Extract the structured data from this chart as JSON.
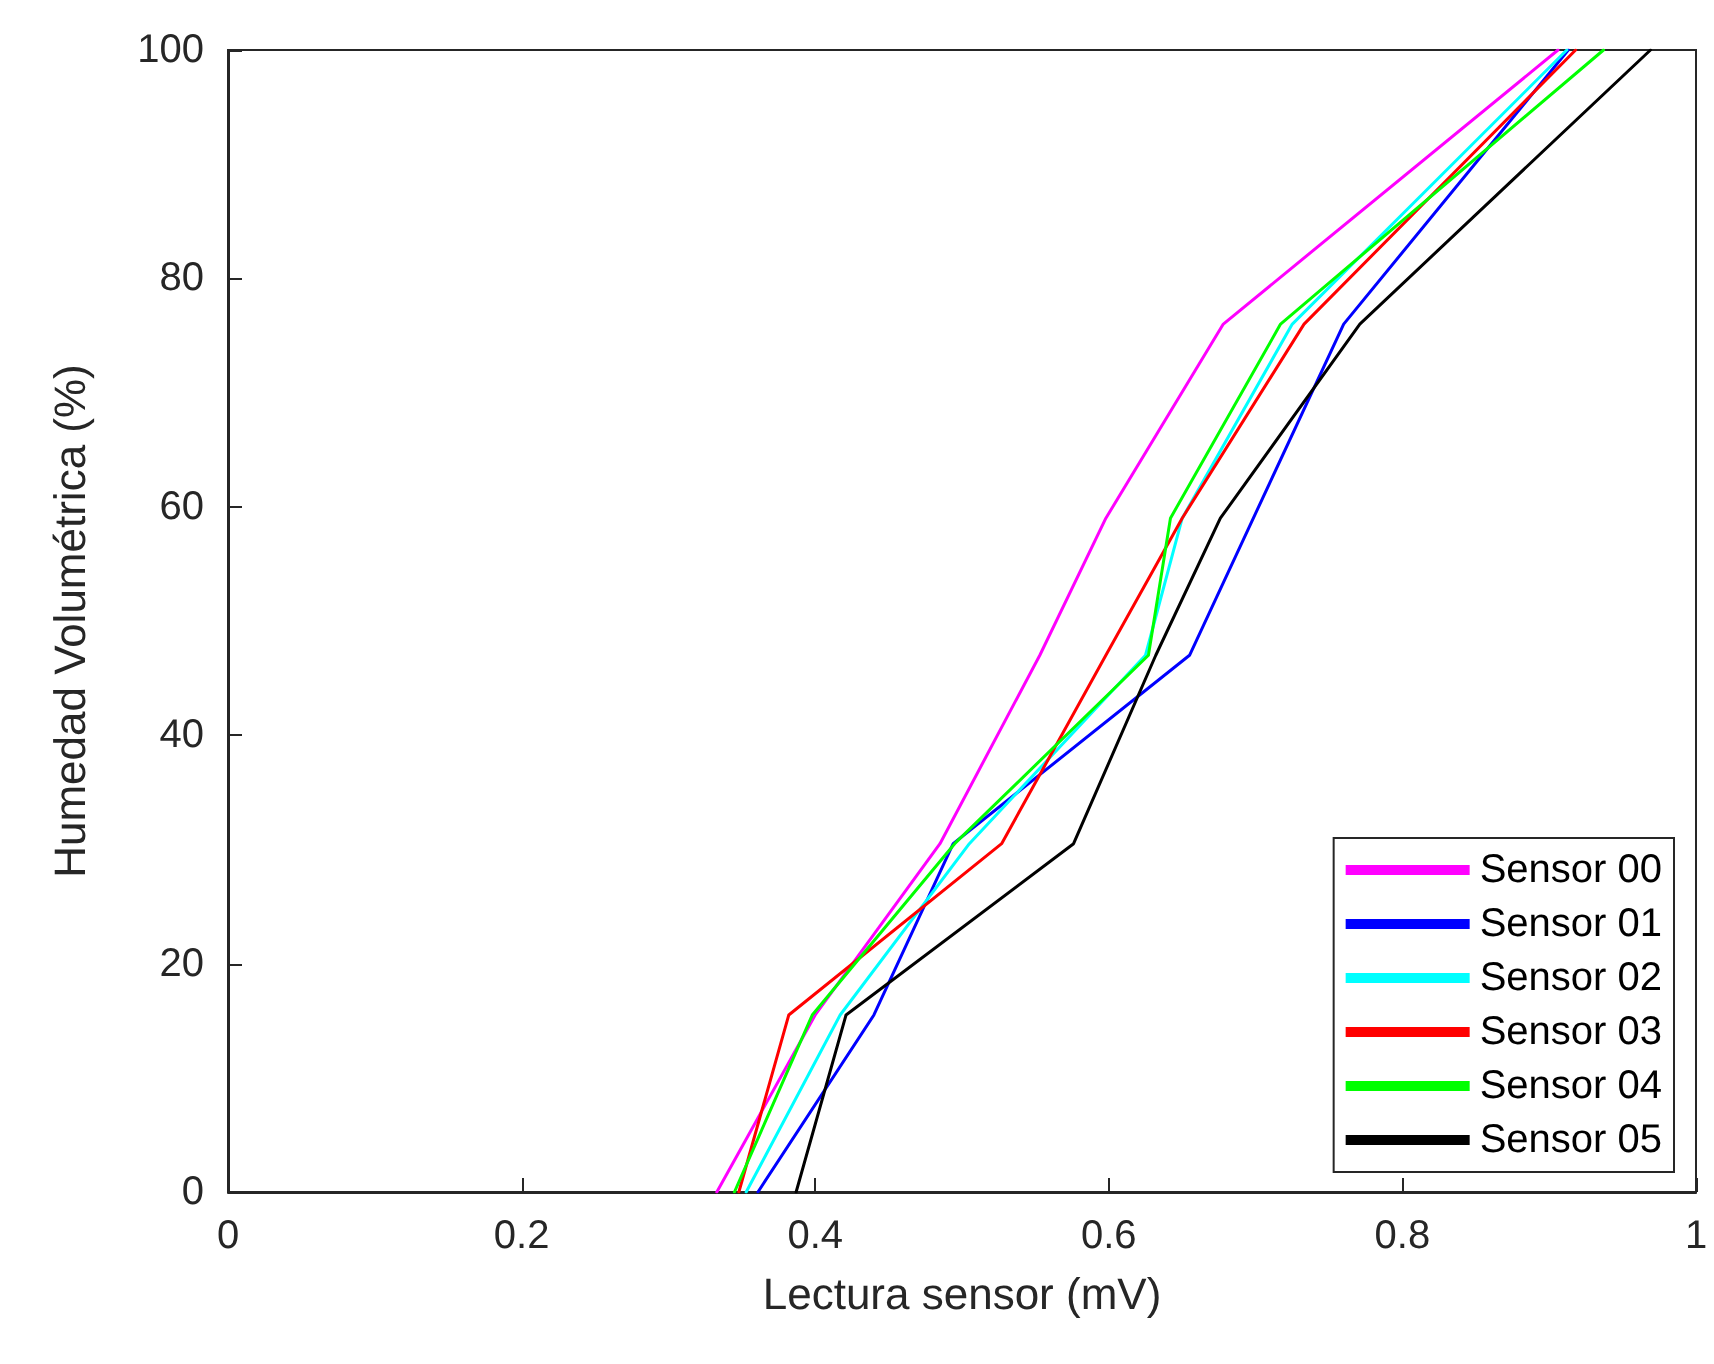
{
  "chart_data": {
    "type": "line",
    "xlabel": "Lectura sensor (mV)",
    "ylabel": "Humedad Volumétrica (%)",
    "xlim": [
      0,
      1
    ],
    "xticks": [
      0,
      0.2,
      0.4,
      0.6,
      0.8,
      1
    ],
    "ylim": [
      0,
      100
    ],
    "yticks": [
      0,
      20,
      40,
      60,
      80,
      100
    ],
    "grid": false,
    "legend": "bottom right",
    "marker": "none",
    "line_style": "solid",
    "series": [
      {
        "name": "Sensor 00",
        "color": "#ff00ff",
        "x": [
          0.333,
          0.4,
          0.485,
          0.553,
          0.598,
          0.678,
          0.906
        ],
        "values": [
          0,
          15.5,
          30.5,
          47,
          59,
          76,
          100
        ]
      },
      {
        "name": "Sensor 01",
        "color": "#0000ff",
        "x": [
          0.361,
          0.44,
          0.494,
          0.655,
          0.76,
          0.913
        ],
        "values": [
          0,
          15.5,
          30.5,
          47,
          76,
          100
        ]
      },
      {
        "name": "Sensor 02",
        "color": "#00ffff",
        "x": [
          0.353,
          0.417,
          0.505,
          0.625,
          0.65,
          0.725,
          0.912
        ],
        "values": [
          0,
          15.5,
          30.5,
          47,
          59,
          76,
          100
        ]
      },
      {
        "name": "Sensor 03",
        "color": "#ff0000",
        "x": [
          0.348,
          0.382,
          0.527,
          0.598,
          0.65,
          0.733,
          0.918
        ],
        "values": [
          0,
          15.5,
          30.5,
          47,
          59,
          76,
          100
        ]
      },
      {
        "name": "Sensor 04",
        "color": "#00ff00",
        "x": [
          0.345,
          0.398,
          0.495,
          0.627,
          0.642,
          0.717,
          0.937
        ],
        "values": [
          0,
          15.5,
          30.5,
          47,
          59,
          76,
          100
        ]
      },
      {
        "name": "Sensor 05",
        "color": "#000000",
        "x": [
          0.387,
          0.421,
          0.576,
          0.632,
          0.676,
          0.771,
          0.969
        ],
        "values": [
          0,
          15.5,
          30.5,
          47,
          59,
          76,
          100
        ]
      }
    ]
  }
}
